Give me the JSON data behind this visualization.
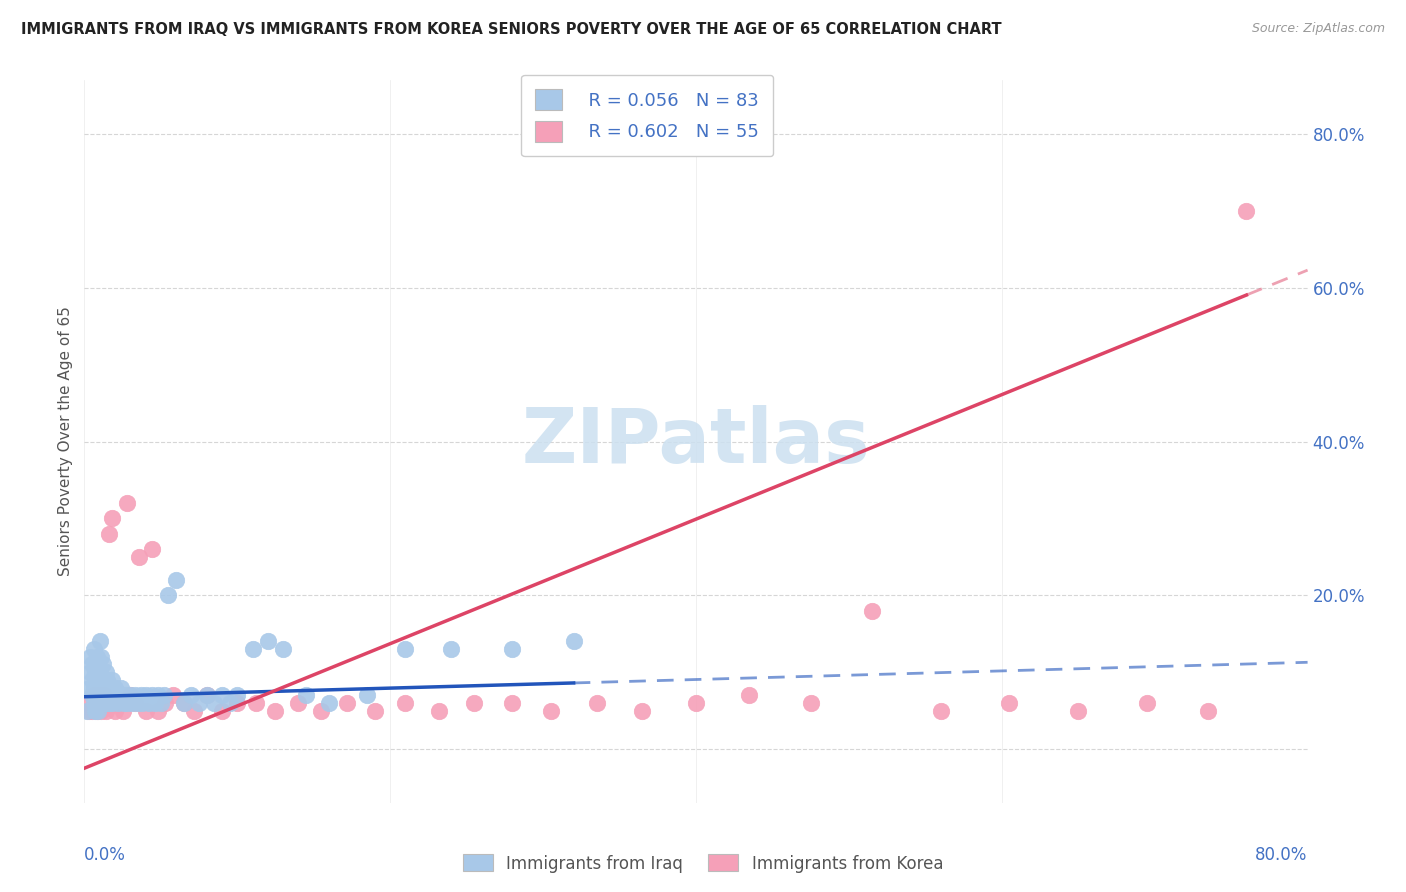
{
  "title": "IMMIGRANTS FROM IRAQ VS IMMIGRANTS FROM KOREA SENIORS POVERTY OVER THE AGE OF 65 CORRELATION CHART",
  "source": "Source: ZipAtlas.com",
  "ylabel": "Seniors Poverty Over the Age of 65",
  "ytick_vals": [
    0.0,
    0.2,
    0.4,
    0.6,
    0.8
  ],
  "ytick_labels": [
    "",
    "20.0%",
    "40.0%",
    "60.0%",
    "80.0%"
  ],
  "xlim": [
    0.0,
    0.8
  ],
  "ylim": [
    -0.07,
    0.87
  ],
  "legend_iraq_R": "R = 0.056",
  "legend_iraq_N": "N = 83",
  "legend_korea_R": "R = 0.602",
  "legend_korea_N": "N = 55",
  "iraq_color": "#a8c8e8",
  "korea_color": "#f5a0b8",
  "iraq_line_color": "#2255bb",
  "korea_line_color": "#dd4466",
  "watermark_color": "#cce0f0",
  "background_color": "#ffffff",
  "iraq_scatter_x": [
    0.002,
    0.003,
    0.004,
    0.004,
    0.005,
    0.005,
    0.005,
    0.006,
    0.006,
    0.006,
    0.007,
    0.007,
    0.007,
    0.008,
    0.008,
    0.008,
    0.009,
    0.009,
    0.009,
    0.01,
    0.01,
    0.01,
    0.01,
    0.011,
    0.011,
    0.011,
    0.012,
    0.012,
    0.012,
    0.013,
    0.013,
    0.014,
    0.014,
    0.015,
    0.015,
    0.016,
    0.016,
    0.017,
    0.018,
    0.018,
    0.019,
    0.02,
    0.021,
    0.022,
    0.023,
    0.024,
    0.025,
    0.026,
    0.027,
    0.028,
    0.03,
    0.031,
    0.033,
    0.035,
    0.037,
    0.038,
    0.04,
    0.042,
    0.044,
    0.046,
    0.048,
    0.05,
    0.052,
    0.055,
    0.06,
    0.065,
    0.07,
    0.075,
    0.08,
    0.085,
    0.09,
    0.095,
    0.1,
    0.11,
    0.12,
    0.13,
    0.145,
    0.16,
    0.185,
    0.21,
    0.24,
    0.28,
    0.32
  ],
  "iraq_scatter_y": [
    0.05,
    0.08,
    0.1,
    0.12,
    0.07,
    0.09,
    0.11,
    0.06,
    0.08,
    0.13,
    0.05,
    0.07,
    0.1,
    0.06,
    0.08,
    0.12,
    0.05,
    0.07,
    0.09,
    0.06,
    0.08,
    0.1,
    0.14,
    0.07,
    0.09,
    0.12,
    0.06,
    0.08,
    0.11,
    0.07,
    0.09,
    0.06,
    0.1,
    0.07,
    0.09,
    0.06,
    0.08,
    0.07,
    0.06,
    0.09,
    0.07,
    0.08,
    0.07,
    0.06,
    0.07,
    0.08,
    0.07,
    0.06,
    0.07,
    0.06,
    0.07,
    0.06,
    0.07,
    0.06,
    0.07,
    0.06,
    0.07,
    0.06,
    0.07,
    0.06,
    0.07,
    0.06,
    0.07,
    0.2,
    0.22,
    0.06,
    0.07,
    0.06,
    0.07,
    0.06,
    0.07,
    0.06,
    0.07,
    0.13,
    0.14,
    0.13,
    0.07,
    0.06,
    0.07,
    0.13,
    0.13,
    0.13,
    0.14
  ],
  "korea_scatter_x": [
    0.003,
    0.004,
    0.005,
    0.006,
    0.007,
    0.008,
    0.009,
    0.01,
    0.011,
    0.012,
    0.013,
    0.014,
    0.015,
    0.016,
    0.018,
    0.02,
    0.022,
    0.025,
    0.028,
    0.03,
    0.033,
    0.036,
    0.04,
    0.044,
    0.048,
    0.053,
    0.058,
    0.065,
    0.072,
    0.08,
    0.09,
    0.1,
    0.112,
    0.125,
    0.14,
    0.155,
    0.172,
    0.19,
    0.21,
    0.232,
    0.255,
    0.28,
    0.305,
    0.335,
    0.365,
    0.4,
    0.435,
    0.475,
    0.515,
    0.56,
    0.605,
    0.65,
    0.695,
    0.735,
    0.76
  ],
  "korea_scatter_y": [
    0.05,
    0.06,
    0.05,
    0.07,
    0.06,
    0.05,
    0.07,
    0.06,
    0.05,
    0.06,
    0.07,
    0.05,
    0.06,
    0.28,
    0.3,
    0.05,
    0.06,
    0.05,
    0.32,
    0.07,
    0.06,
    0.25,
    0.05,
    0.26,
    0.05,
    0.06,
    0.07,
    0.06,
    0.05,
    0.07,
    0.05,
    0.06,
    0.06,
    0.05,
    0.06,
    0.05,
    0.06,
    0.05,
    0.06,
    0.05,
    0.06,
    0.06,
    0.05,
    0.06,
    0.05,
    0.06,
    0.07,
    0.06,
    0.18,
    0.05,
    0.06,
    0.05,
    0.06,
    0.05,
    0.7
  ],
  "iraq_line_slope": 0.056,
  "iraq_line_intercept": 0.068,
  "korea_line_slope": 0.81,
  "korea_line_intercept": -0.025
}
